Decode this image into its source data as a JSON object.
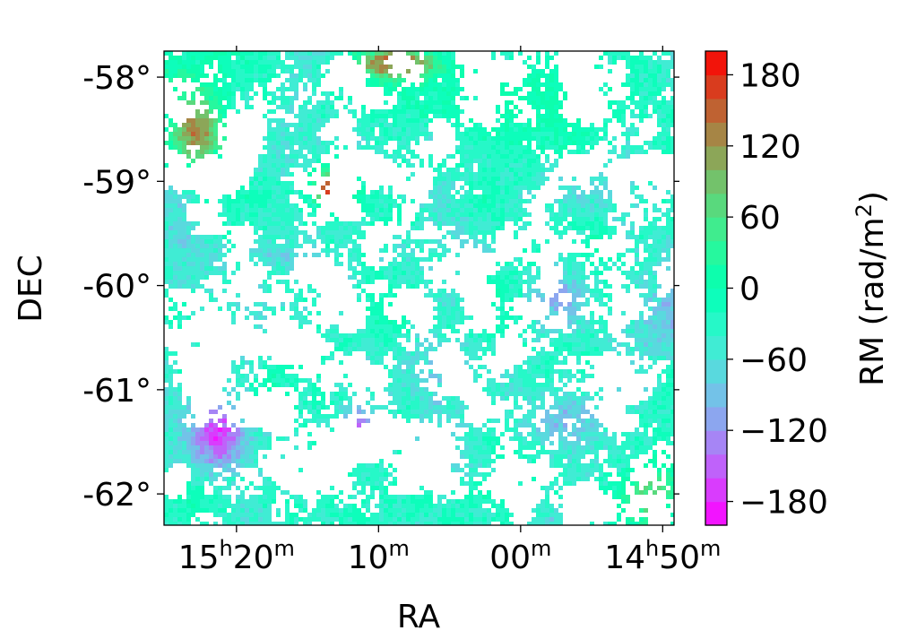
{
  "chart_data": {
    "type": "heatmap",
    "xlabel": "RA",
    "ylabel": "DEC",
    "x_ticks": [
      {
        "hours": "15",
        "minutes": "20",
        "value_min": 920,
        "show_hours": true
      },
      {
        "hours": "",
        "minutes": "10",
        "value_min": 910,
        "show_hours": false
      },
      {
        "hours": "",
        "minutes": "00",
        "value_min": 900,
        "show_hours": false
      },
      {
        "hours": "14",
        "minutes": "50",
        "value_min": 890,
        "show_hours": true
      }
    ],
    "xlim_min": [
      925.1,
      889.2
    ],
    "y_ticks": [
      {
        "label": "-58°",
        "value": -58
      },
      {
        "label": "-59°",
        "value": -59
      },
      {
        "label": "-60°",
        "value": -60
      },
      {
        "label": "-61°",
        "value": -61
      },
      {
        "label": "-62°",
        "value": -62
      }
    ],
    "ylim": [
      -62.3,
      -57.75
    ],
    "colorbar": {
      "label": "RM (rad/m",
      "label_sup": "2",
      "label_end": ")",
      "range": [
        -200,
        200
      ],
      "ticks": [
        {
          "label": "180",
          "value": 180
        },
        {
          "label": "120",
          "value": 120
        },
        {
          "label": "60",
          "value": 60
        },
        {
          "label": "0",
          "value": 0
        },
        {
          "label": "−60",
          "value": -60
        },
        {
          "label": "−120",
          "value": -120
        },
        {
          "label": "−180",
          "value": -180
        }
      ],
      "colormap": "rainbow",
      "levels": 20
    },
    "regions": [
      {
        "ra_min": 913.5,
        "dec": -59.05,
        "spread_ra": 1.8,
        "spread_dec": 0.25,
        "rm": 170
      },
      {
        "ra_min": 923.0,
        "dec": -58.5,
        "spread_ra": 2.5,
        "spread_dec": 0.5,
        "rm": 130
      },
      {
        "ra_min": 921.5,
        "dec": -61.4,
        "spread_ra": 3.0,
        "spread_dec": 0.5,
        "rm": -170
      },
      {
        "ra_min": 911.5,
        "dec": -61.35,
        "spread_ra": 2.0,
        "spread_dec": 0.3,
        "rm": -150
      },
      {
        "ra_min": 897.0,
        "dec": -61.3,
        "spread_ra": 5.0,
        "spread_dec": 0.5,
        "rm": -90
      },
      {
        "ra_min": 897.5,
        "dec": -60.1,
        "spread_ra": 3.5,
        "spread_dec": 0.5,
        "rm": -100
      },
      {
        "ra_min": 900.0,
        "dec": -58.2,
        "spread_ra": 10.0,
        "spread_dec": 0.5,
        "rm": 0
      },
      {
        "ra_min": 891.0,
        "dec": -62.0,
        "spread_ra": 2.5,
        "spread_dec": 0.4,
        "rm": 70
      },
      {
        "ra_min": 909.0,
        "dec": -57.85,
        "spread_ra": 3.0,
        "spread_dec": 0.15,
        "rm": 160
      }
    ]
  }
}
